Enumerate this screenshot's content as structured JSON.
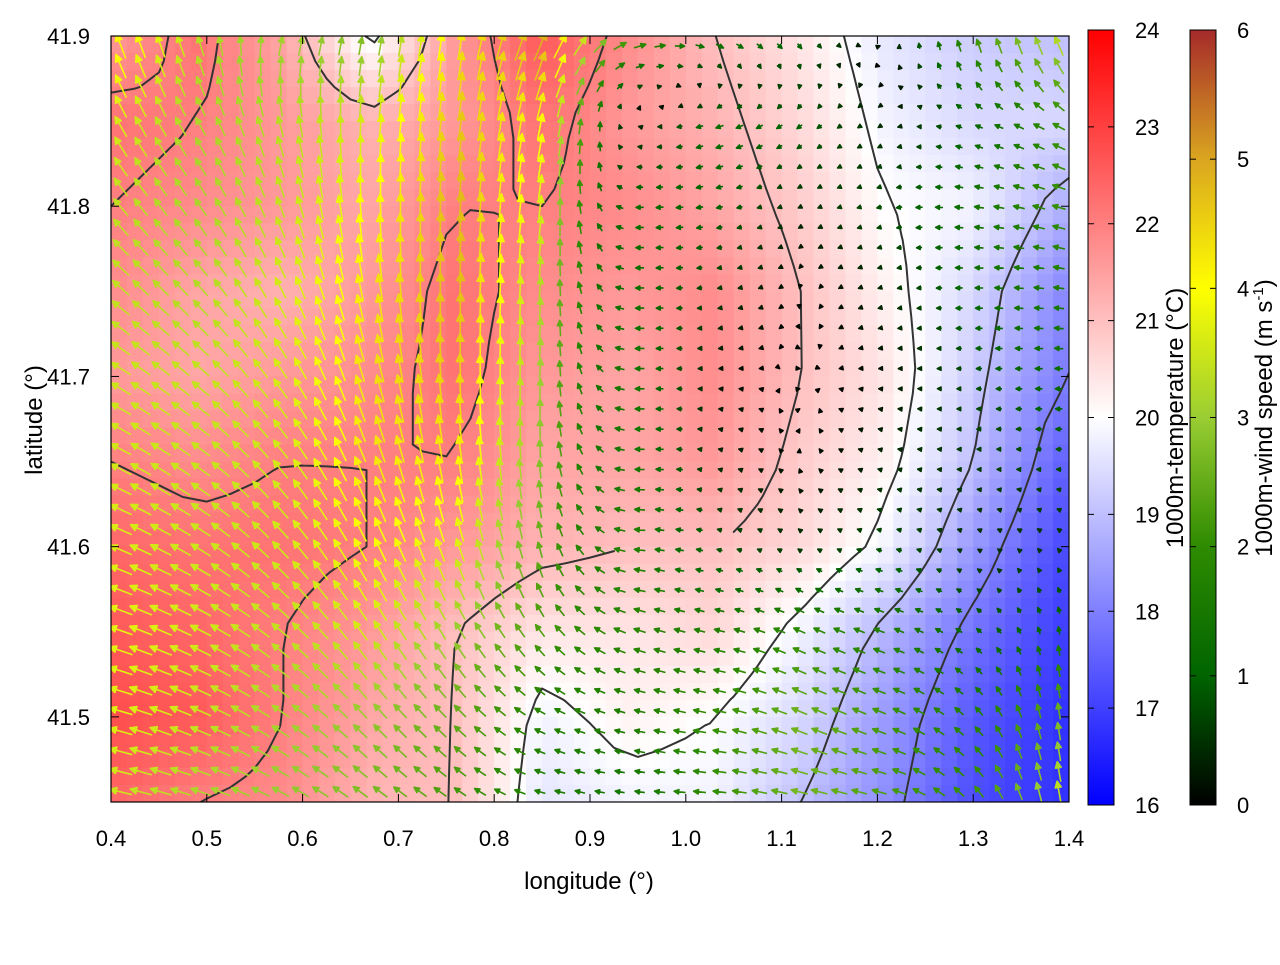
{
  "chart_data": {
    "type": "heatmap",
    "title": "",
    "xlabel": "longitude (°)",
    "ylabel": "latitude (°)",
    "xlim": [
      0.4,
      1.4
    ],
    "ylim": [
      41.45,
      41.9
    ],
    "x_ticks": [
      "0.4",
      "0.5",
      "0.6",
      "0.7",
      "0.8",
      "0.9",
      "1.0",
      "1.1",
      "1.2",
      "1.3",
      "1.4"
    ],
    "y_ticks": [
      "41.5",
      "41.6",
      "41.7",
      "41.8",
      "41.9"
    ],
    "grid": false,
    "temperature": {
      "label": "1000m-temperature (°C)",
      "range": [
        16,
        24
      ],
      "ticks": [
        "16",
        "17",
        "18",
        "19",
        "20",
        "21",
        "22",
        "23",
        "24"
      ],
      "colors": [
        "#0000ff",
        "#ffffff",
        "#ff0000"
      ]
    },
    "wind_speed": {
      "label": "1000m-wind speed (m s",
      "label_sup": "-1",
      "label_end": ")",
      "range": [
        0,
        6
      ],
      "ticks": [
        "0",
        "1",
        "2",
        "3",
        "4",
        "5",
        "6"
      ],
      "colors": [
        "#000000",
        "#006400",
        "#2e8b00",
        "#9acd32",
        "#ffff00",
        "#daa520",
        "#a52a2a"
      ]
    },
    "temperature_field": [
      [
        21.6,
        22.2,
        21.4,
        19.8,
        21.6,
        22.6,
        21.8,
        21.0,
        20.4,
        19.6,
        19.2,
        19.0
      ],
      [
        22.2,
        22.0,
        21.6,
        21.2,
        21.6,
        22.2,
        21.6,
        21.2,
        20.6,
        19.8,
        19.4,
        19.4
      ],
      [
        22.0,
        21.8,
        21.6,
        21.4,
        22.0,
        22.0,
        21.8,
        21.4,
        20.8,
        20.0,
        19.8,
        18.8
      ],
      [
        21.8,
        21.4,
        21.2,
        21.6,
        22.2,
        21.8,
        21.6,
        21.8,
        21.0,
        20.2,
        19.4,
        18.2
      ],
      [
        21.6,
        21.4,
        21.6,
        21.8,
        22.2,
        21.6,
        21.4,
        21.8,
        21.0,
        20.4,
        19.2,
        18.0
      ],
      [
        22.0,
        21.8,
        22.0,
        22.0,
        22.0,
        21.4,
        21.4,
        21.6,
        20.8,
        20.2,
        19.0,
        17.6
      ],
      [
        22.4,
        22.2,
        22.2,
        22.0,
        21.6,
        21.2,
        21.0,
        21.0,
        20.6,
        19.8,
        18.4,
        17.2
      ],
      [
        22.6,
        22.4,
        22.0,
        21.6,
        21.0,
        20.4,
        20.4,
        20.6,
        19.8,
        18.8,
        17.8,
        17.0
      ],
      [
        22.8,
        22.6,
        22.0,
        21.4,
        21.0,
        19.8,
        20.2,
        20.0,
        19.4,
        18.4,
        17.4,
        16.8
      ],
      [
        22.4,
        22.0,
        21.8,
        21.2,
        21.0,
        19.6,
        19.8,
        19.8,
        19.0,
        18.2,
        17.2,
        16.8
      ]
    ],
    "wind_u": [
      [
        -1.5,
        -1.0,
        0.8,
        0.5,
        0.6,
        2.0,
        2.2,
        1.5,
        0.8,
        0.2,
        -0.6,
        -1.2
      ],
      [
        -1.8,
        -1.5,
        -0.8,
        0.3,
        0.6,
        0.8,
        -0.2,
        -1.2,
        -0.8,
        -0.3,
        -1.0,
        -1.8
      ],
      [
        -2.2,
        -1.8,
        -1.2,
        -0.2,
        0.4,
        0.4,
        -1.2,
        -1.0,
        -0.4,
        -0.8,
        -1.4,
        -2.0
      ],
      [
        -2.6,
        -2.2,
        -1.6,
        -0.8,
        0.2,
        0.2,
        -1.4,
        -0.6,
        0.0,
        -0.4,
        -1.2,
        -1.6
      ],
      [
        -3.0,
        -2.6,
        -2.0,
        -1.2,
        -0.2,
        0.2,
        -1.6,
        -0.2,
        0.1,
        -0.2,
        -0.8,
        -1.2
      ],
      [
        -3.2,
        -2.8,
        -2.2,
        -1.6,
        -0.6,
        -0.2,
        -1.6,
        -0.4,
        0.0,
        -0.4,
        -0.6,
        -0.8
      ],
      [
        -3.4,
        -3.0,
        -2.4,
        -1.8,
        -1.2,
        -0.6,
        -1.8,
        -0.8,
        -0.4,
        -0.8,
        -0.4,
        -0.4
      ],
      [
        -3.6,
        -3.2,
        -2.6,
        -2.0,
        -1.6,
        -1.4,
        -1.8,
        -1.6,
        -1.8,
        -1.6,
        -0.8,
        -0.2
      ],
      [
        -3.6,
        -3.2,
        -2.6,
        -2.0,
        -1.8,
        -1.6,
        -1.6,
        -2.0,
        -2.4,
        -2.0,
        -1.2,
        -0.4
      ],
      [
        -3.4,
        -3.0,
        -2.6,
        -2.2,
        -1.8,
        -1.6,
        -1.4,
        -2.0,
        -2.6,
        -2.2,
        -1.4,
        -0.6
      ]
    ],
    "wind_v": [
      [
        4.0,
        3.2,
        3.0,
        2.6,
        4.2,
        4.6,
        0.8,
        -0.6,
        -0.8,
        0.2,
        2.2,
        3.2
      ],
      [
        3.2,
        2.8,
        3.2,
        3.6,
        4.6,
        4.0,
        0.2,
        -0.4,
        -0.6,
        -0.2,
        0.4,
        1.0
      ],
      [
        2.6,
        2.6,
        3.2,
        4.0,
        4.8,
        3.6,
        0.0,
        -0.2,
        -0.2,
        -0.2,
        0.2,
        0.6
      ],
      [
        2.2,
        2.4,
        3.2,
        4.2,
        4.8,
        3.2,
        0.0,
        -0.1,
        -0.1,
        -0.1,
        0.0,
        0.2
      ],
      [
        1.8,
        2.2,
        3.0,
        4.2,
        4.6,
        3.0,
        0.0,
        0.0,
        0.0,
        0.0,
        0.0,
        0.0
      ],
      [
        1.6,
        2.0,
        2.8,
        4.0,
        4.2,
        2.8,
        0.0,
        0.1,
        0.1,
        0.1,
        0.0,
        0.0
      ],
      [
        1.4,
        1.8,
        2.6,
        3.6,
        3.6,
        2.4,
        0.2,
        0.2,
        0.3,
        0.2,
        0.2,
        0.4
      ],
      [
        1.2,
        1.6,
        2.2,
        3.0,
        2.6,
        1.8,
        0.6,
        0.4,
        0.8,
        0.6,
        0.6,
        1.2
      ],
      [
        1.0,
        1.4,
        1.8,
        2.2,
        1.8,
        0.8,
        0.4,
        0.4,
        1.0,
        0.8,
        1.2,
        2.6
      ],
      [
        0.8,
        1.0,
        1.4,
        1.6,
        1.2,
        0.4,
        0.2,
        0.2,
        0.6,
        0.6,
        1.6,
        3.4
      ]
    ],
    "field_grid": {
      "lon": [
        0.4,
        0.49,
        0.58,
        0.67,
        0.76,
        0.85,
        0.94,
        1.03,
        1.12,
        1.21,
        1.3,
        1.39
      ],
      "lat": [
        41.9,
        41.85,
        41.8,
        41.75,
        41.7,
        41.65,
        41.6,
        41.55,
        41.5,
        41.45
      ]
    }
  }
}
